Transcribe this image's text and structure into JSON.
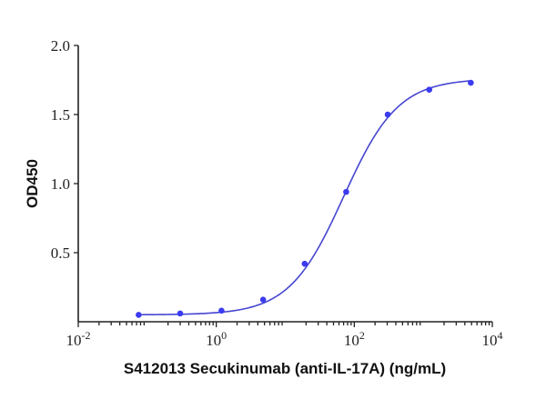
{
  "chart_data": {
    "type": "scatter",
    "title": "",
    "xlabel": "S412013 Secukinumab (anti-IL-17A) (ng/mL)",
    "ylabel": "OD450",
    "x_scale": "log10",
    "xlim": [
      0.01,
      10000
    ],
    "ylim": [
      0,
      2.0
    ],
    "x_ticks": [
      {
        "value": 0.01,
        "base": "10",
        "exp": "-2"
      },
      {
        "value": 1,
        "base": "10",
        "exp": "0"
      },
      {
        "value": 100,
        "base": "10",
        "exp": "2"
      },
      {
        "value": 10000,
        "base": "10",
        "exp": "4"
      }
    ],
    "y_ticks": [
      {
        "value": 0.5,
        "label": "0.5"
      },
      {
        "value": 1.0,
        "label": "1.0"
      },
      {
        "value": 1.5,
        "label": "1.5"
      },
      {
        "value": 2.0,
        "label": "2.0"
      }
    ],
    "grid": false,
    "legend": null,
    "series": [
      {
        "name": "S412013 Secukinumab",
        "color": "#3b3bf0",
        "x": [
          0.075,
          0.3,
          1.19,
          4.77,
          19.1,
          76.3,
          305,
          1220,
          4880
        ],
        "y": [
          0.05,
          0.06,
          0.08,
          0.16,
          0.42,
          0.94,
          1.5,
          1.68,
          1.73
        ]
      }
    ],
    "fit": {
      "model": "4PL",
      "color": "#4646d2",
      "bottom": 0.05,
      "top": 1.76,
      "ec50": 70,
      "hill": 1.1
    }
  }
}
